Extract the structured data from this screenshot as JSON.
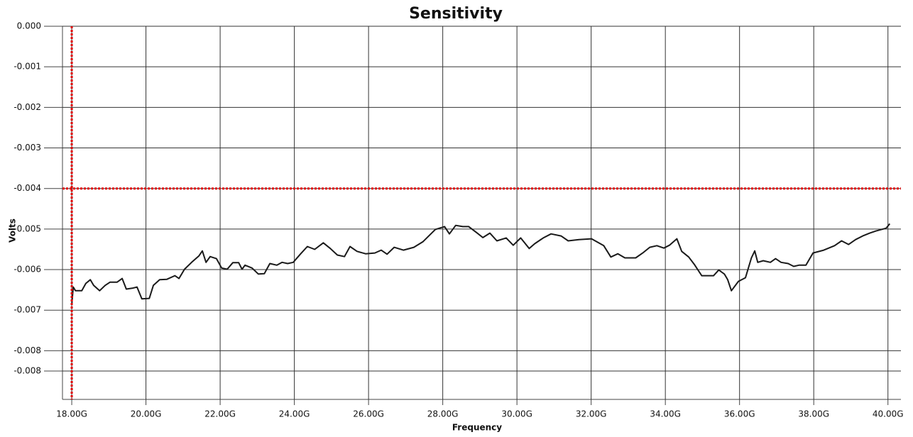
{
  "chart_data": {
    "type": "line",
    "title": "Sensitivity",
    "x_label": "Frequency",
    "y_label": "Volts",
    "xlim": [
      17.75,
      40.35
    ],
    "ylim": [
      -0.0092,
      0
    ],
    "xticks": [
      {
        "value": 18,
        "label": "18.00G"
      },
      {
        "value": 20,
        "label": "20.00G"
      },
      {
        "value": 22,
        "label": "22.00G"
      },
      {
        "value": 24,
        "label": "24.00G"
      },
      {
        "value": 26,
        "label": "26.00G"
      },
      {
        "value": 28,
        "label": "28.00G"
      },
      {
        "value": 30,
        "label": "30.00G"
      },
      {
        "value": 32,
        "label": "32.00G"
      },
      {
        "value": 34,
        "label": "34.00G"
      },
      {
        "value": 36,
        "label": "36.00G"
      },
      {
        "value": 38,
        "label": "38.00G"
      },
      {
        "value": 40,
        "label": "40.00G"
      }
    ],
    "yticks": [
      {
        "value": 0,
        "label": "0.000"
      },
      {
        "value": -0.001,
        "label": "-0.001"
      },
      {
        "value": -0.002,
        "label": "-0.002"
      },
      {
        "value": -0.003,
        "label": "-0.003"
      },
      {
        "value": -0.004,
        "label": "-0.004"
      },
      {
        "value": -0.005,
        "label": "-0.005"
      },
      {
        "value": -0.006,
        "label": "-0.006"
      },
      {
        "value": -0.007,
        "label": "-0.007"
      },
      {
        "value": -0.008,
        "label": "-0.008"
      },
      {
        "value": -0.0085,
        "label": "-0.008"
      }
    ],
    "grid": true,
    "cursor_x": 18,
    "cursor_y": -0.004,
    "cursor_color": "#e00000",
    "x": [
      18.0,
      18.04,
      18.1,
      18.27,
      18.38,
      18.5,
      18.59,
      18.75,
      18.9,
      19.03,
      19.22,
      19.36,
      19.47,
      19.63,
      19.76,
      19.89,
      20.09,
      20.2,
      20.37,
      20.56,
      20.78,
      20.89,
      21.04,
      21.23,
      21.43,
      21.52,
      21.62,
      21.73,
      21.9,
      22.04,
      22.19,
      22.34,
      22.5,
      22.59,
      22.67,
      22.86,
      23.03,
      23.19,
      23.34,
      23.53,
      23.67,
      23.82,
      23.97,
      24.16,
      24.35,
      24.55,
      24.78,
      24.97,
      25.16,
      25.35,
      25.5,
      25.69,
      25.92,
      26.17,
      26.34,
      26.5,
      26.69,
      26.94,
      27.22,
      27.47,
      27.8,
      28.05,
      28.18,
      28.35,
      28.54,
      28.7,
      28.93,
      29.08,
      29.27,
      29.46,
      29.71,
      29.9,
      30.1,
      30.33,
      30.48,
      30.71,
      30.92,
      31.19,
      31.38,
      31.67,
      32.01,
      32.34,
      32.53,
      32.72,
      32.91,
      33.2,
      33.39,
      33.58,
      33.77,
      33.96,
      34.11,
      34.31,
      34.44,
      34.63,
      34.78,
      34.98,
      35.3,
      35.44,
      35.59,
      35.68,
      35.78,
      35.97,
      36.16,
      36.32,
      36.41,
      36.49,
      36.64,
      36.83,
      36.97,
      37.12,
      37.31,
      37.46,
      37.6,
      37.79,
      37.98,
      38.27,
      38.56,
      38.75,
      38.94,
      39.13,
      39.32,
      39.51,
      39.67,
      39.95,
      40.05
    ],
    "series": [
      {
        "name": "Sensitivity",
        "color": "#1a1a1a",
        "values": [
          -0.00686,
          -0.00643,
          -0.00652,
          -0.00652,
          -0.00634,
          -0.00625,
          -0.00639,
          -0.00652,
          -0.00639,
          -0.00631,
          -0.00631,
          -0.00622,
          -0.00648,
          -0.00646,
          -0.00643,
          -0.00672,
          -0.00671,
          -0.00639,
          -0.00625,
          -0.00624,
          -0.00615,
          -0.00622,
          -0.00599,
          -0.00582,
          -0.00566,
          -0.00554,
          -0.00582,
          -0.00568,
          -0.00573,
          -0.00596,
          -0.00599,
          -0.00583,
          -0.00583,
          -0.00599,
          -0.00589,
          -0.00596,
          -0.00611,
          -0.0061,
          -0.00585,
          -0.00589,
          -0.00582,
          -0.00585,
          -0.00582,
          -0.00562,
          -0.00543,
          -0.0055,
          -0.00534,
          -0.00548,
          -0.00564,
          -0.00568,
          -0.00543,
          -0.00555,
          -0.00561,
          -0.00559,
          -0.00552,
          -0.00562,
          -0.00545,
          -0.00552,
          -0.00545,
          -0.00531,
          -0.00501,
          -0.00494,
          -0.00512,
          -0.00491,
          -0.00494,
          -0.00494,
          -0.0051,
          -0.00521,
          -0.0051,
          -0.00529,
          -0.00522,
          -0.0054,
          -0.00522,
          -0.00548,
          -0.00536,
          -0.00522,
          -0.00512,
          -0.00517,
          -0.00529,
          -0.00526,
          -0.00524,
          -0.00541,
          -0.00569,
          -0.00561,
          -0.00571,
          -0.00571,
          -0.00559,
          -0.00545,
          -0.00541,
          -0.00547,
          -0.0054,
          -0.00524,
          -0.00555,
          -0.00569,
          -0.00587,
          -0.00615,
          -0.00615,
          -0.00601,
          -0.00611,
          -0.00625,
          -0.00652,
          -0.00629,
          -0.0062,
          -0.00571,
          -0.00554,
          -0.00582,
          -0.00578,
          -0.00582,
          -0.00573,
          -0.00582,
          -0.00585,
          -0.00592,
          -0.00589,
          -0.00589,
          -0.00559,
          -0.00552,
          -0.00541,
          -0.00529,
          -0.00538,
          -0.00526,
          -0.00517,
          -0.0051,
          -0.00505,
          -0.00498,
          -0.00487
        ]
      }
    ]
  }
}
